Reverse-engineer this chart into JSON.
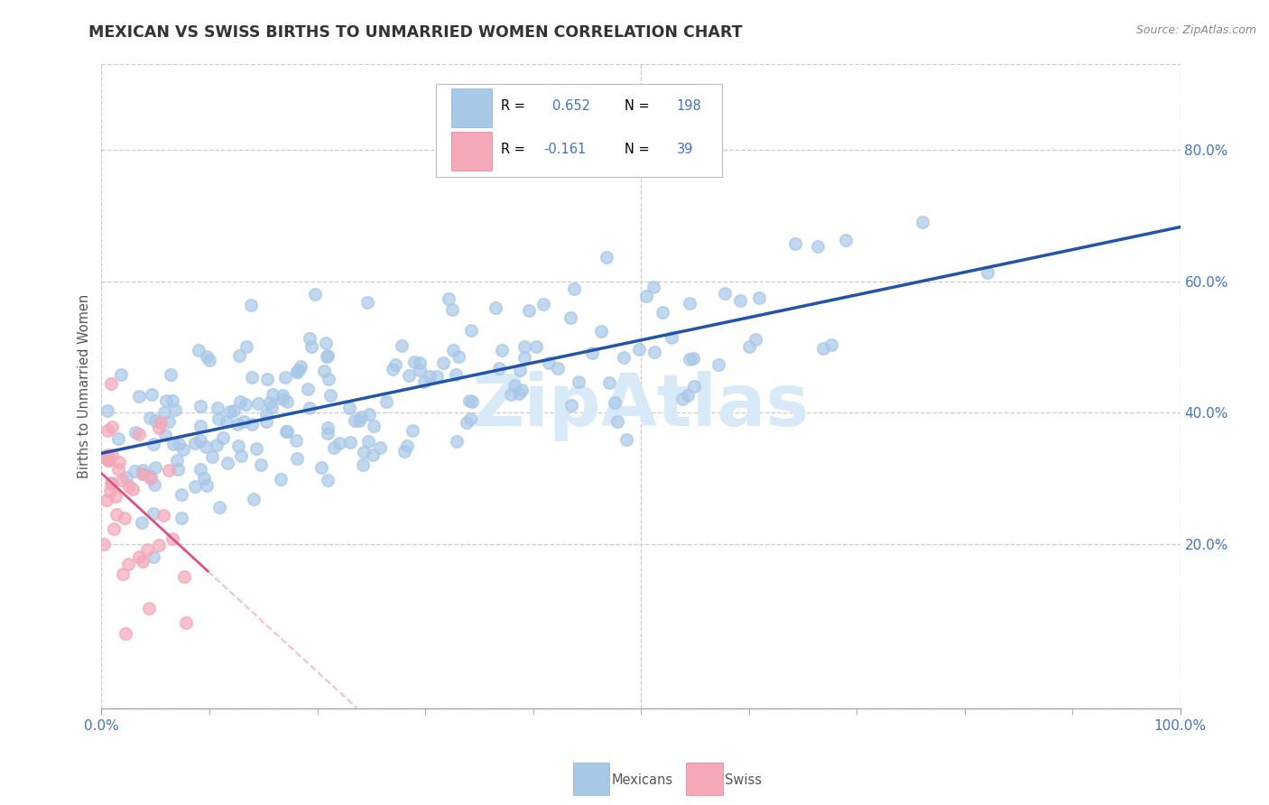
{
  "title": "MEXICAN VS SWISS BIRTHS TO UNMARRIED WOMEN CORRELATION CHART",
  "source": "Source: ZipAtlas.com",
  "ylabel": "Births to Unmarried Women",
  "xlim": [
    0.0,
    1.0
  ],
  "ylim": [
    -0.05,
    0.93
  ],
  "yticks": [
    0.2,
    0.4,
    0.6,
    0.8
  ],
  "ytick_labels": [
    "20.0%",
    "40.0%",
    "60.0%",
    "80.0%"
  ],
  "mexican_R": 0.652,
  "mexican_N": 198,
  "swiss_R": -0.161,
  "swiss_N": 39,
  "mexican_color": "#a8c8e8",
  "swiss_color": "#f4a8b8",
  "mexican_line_color": "#2255aa",
  "swiss_line_solid_color": "#e05080",
  "swiss_line_dash_color": "#f0b0c0",
  "background_color": "#ffffff",
  "grid_color": "#cccccc",
  "title_color": "#333333",
  "watermark_text": "ZipAtlas",
  "watermark_color": "#d8eaf8",
  "seed": 12345
}
